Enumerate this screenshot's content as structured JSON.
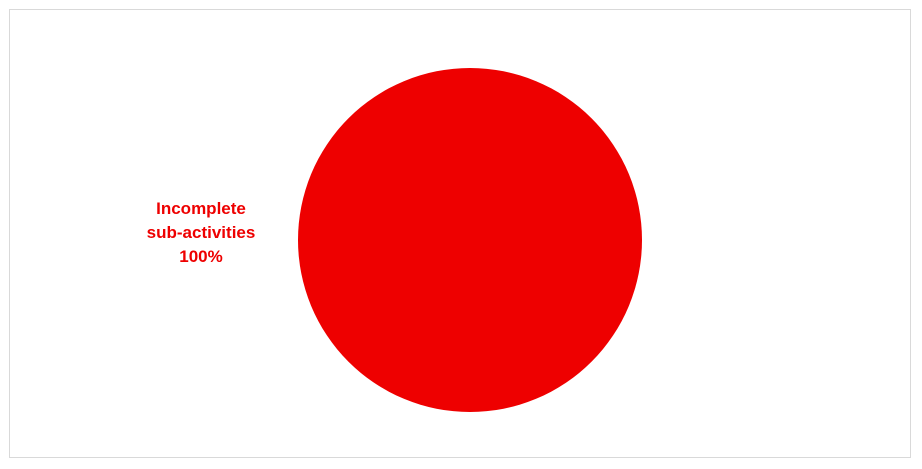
{
  "chart_data": {
    "type": "pie",
    "title": "",
    "slices": [
      {
        "label_lines": [
          "Incomplete",
          "sub-activities"
        ],
        "value": 100,
        "value_label": "100%",
        "color": "#ee0000"
      }
    ],
    "legend": "none",
    "label_color": "#ee0000"
  }
}
